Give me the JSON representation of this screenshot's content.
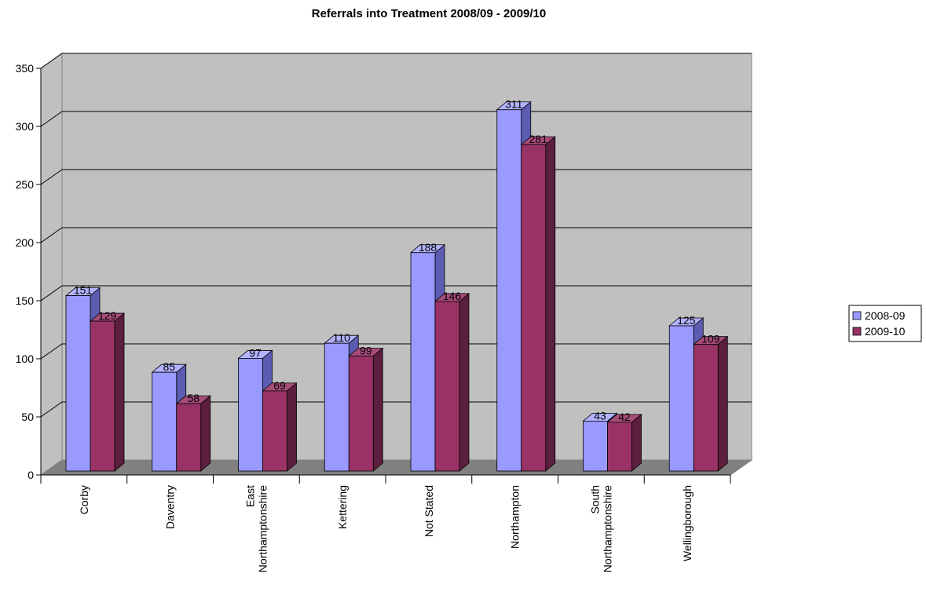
{
  "chart_data": {
    "type": "bar",
    "title": "Referrals into Treatment 2008/09 - 2009/10",
    "xlabel": "",
    "ylabel": "",
    "ylim": [
      0,
      350
    ],
    "yticks": [
      "0",
      "50",
      "100",
      "150",
      "200",
      "250",
      "300",
      "350"
    ],
    "categories": [
      [
        "Corby"
      ],
      [
        "Daventry"
      ],
      [
        "East",
        "Northamptonshire"
      ],
      [
        "Kettering"
      ],
      [
        "Not Stated"
      ],
      [
        "Northampton"
      ],
      [
        "South",
        "Northamptonshire"
      ],
      [
        "Wellingborough"
      ]
    ],
    "series": [
      {
        "name": "2008-09",
        "values": [
          151,
          85,
          97,
          110,
          188,
          311,
          43,
          125
        ],
        "color": "#9999ff",
        "top": "#b3b3ff",
        "side": "#5c5cb3"
      },
      {
        "name": "2009-10",
        "values": [
          129,
          58,
          69,
          99,
          146,
          281,
          42,
          109
        ],
        "color": "#993366",
        "top": "#a84d7a",
        "side": "#5c1f3d"
      }
    ],
    "grid": true,
    "legend": "right",
    "style": "3d-clustered-column",
    "colors": {
      "wall": "#c0c0c0",
      "floor": "#808080",
      "gridline": "#000000"
    }
  }
}
